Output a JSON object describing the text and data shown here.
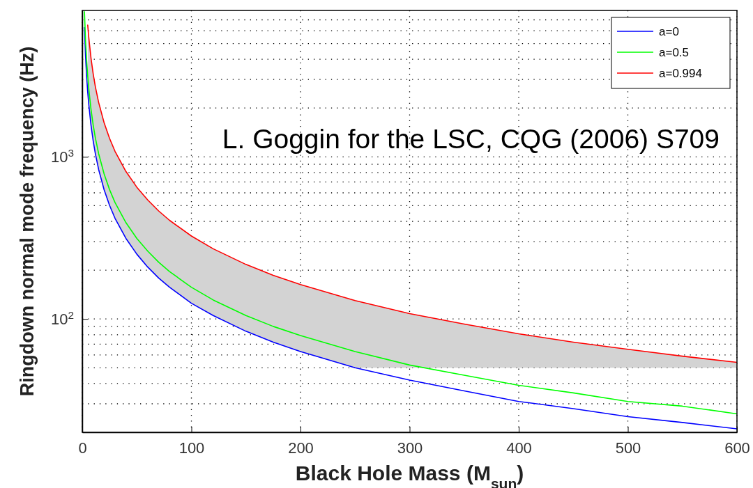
{
  "chart_data": {
    "type": "line",
    "xlabel": "Black Hole Mass (M$_{sun}$)",
    "ylabel": "Ringdown normal mode frequency (Hz)",
    "annotations": [
      "L. Goggin for the LSC, CQG (2006) S709"
    ],
    "xlim": [
      0,
      600
    ],
    "xticks": [
      0,
      100,
      200,
      300,
      400,
      500,
      600
    ],
    "ylim": [
      20,
      8000
    ],
    "yticks": [
      {
        "value": 100,
        "label": "10$^{2}$"
      },
      {
        "value": 1000,
        "label": "10$^{3}$"
      }
    ],
    "log": "y",
    "grid": true,
    "legend": "top right",
    "line_style": "solid",
    "marker": "none",
    "series": [
      {
        "name": "a=0",
        "color": "#0000ff",
        "x": [
          2,
          3,
          4,
          5,
          6,
          8,
          10,
          12,
          15,
          20,
          25,
          30,
          40,
          50,
          60,
          70,
          80,
          100,
          120,
          150,
          175,
          200,
          250,
          300,
          350,
          400,
          450,
          500,
          550,
          600
        ],
        "values": [
          6270,
          4180,
          3135,
          2508,
          2090,
          1568,
          1254,
          1045,
          836,
          627,
          502,
          418,
          314,
          251,
          209,
          179,
          157,
          125,
          105,
          84,
          72,
          63,
          50,
          42,
          36,
          31,
          28,
          25,
          23,
          21
        ]
      },
      {
        "name": "a=0.5",
        "color": "#00ff00",
        "x": [
          2,
          3,
          4,
          5,
          6,
          8,
          10,
          12,
          15,
          20,
          25,
          30,
          40,
          50,
          60,
          70,
          80,
          100,
          120,
          150,
          175,
          200,
          250,
          300,
          350,
          400,
          450,
          500,
          550,
          600
        ],
        "values": [
          7850,
          5233,
          3925,
          3140,
          2617,
          1963,
          1570,
          1308,
          1047,
          785,
          628,
          523,
          393,
          314,
          262,
          224,
          196,
          157,
          131,
          105,
          90,
          79,
          63,
          52,
          45,
          39,
          35,
          31,
          29,
          26
        ]
      },
      {
        "name": "a=0.994",
        "color": "#ff0000",
        "x": [
          5,
          6,
          8,
          10,
          12,
          15,
          20,
          25,
          30,
          40,
          50,
          60,
          70,
          80,
          100,
          120,
          150,
          175,
          200,
          250,
          300,
          350,
          400,
          450,
          500,
          550,
          600
        ],
        "values": [
          6500,
          5417,
          4063,
          3250,
          2708,
          2167,
          1625,
          1300,
          1083,
          813,
          650,
          542,
          464,
          406,
          325,
          271,
          217,
          186,
          163,
          130,
          108,
          93,
          81,
          72,
          65,
          59,
          54
        ],
        "lower": [
          2508,
          2090,
          1568,
          1254,
          1045,
          836,
          627,
          502,
          418,
          314,
          251,
          209,
          179,
          157,
          125,
          105,
          84,
          72,
          63,
          50,
          50,
          50,
          50,
          50,
          50,
          50,
          50
        ],
        "upper": [
          6500,
          5417,
          4063,
          3250,
          2708,
          2167,
          1625,
          1300,
          1083,
          813,
          650,
          542,
          464,
          406,
          325,
          271,
          217,
          186,
          163,
          130,
          108,
          93,
          81,
          72,
          65,
          59,
          54
        ]
      }
    ]
  }
}
